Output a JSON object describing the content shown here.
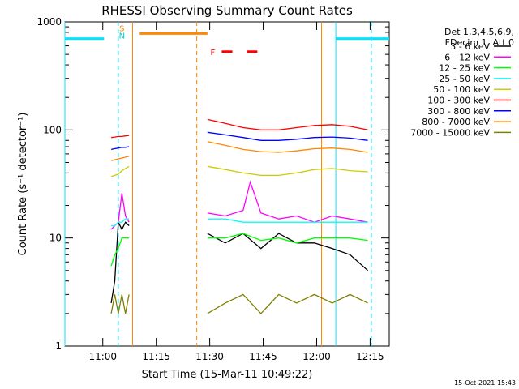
{
  "chart_data": {
    "type": "line",
    "title": "RHESSI Observing Summary Count Rates",
    "xlabel": "Start Time (15-Mar-11 10:49:22)",
    "ylabel": "Count Rate (s⁻¹ detector⁻¹)",
    "y_scale": "log",
    "ylim": [
      1,
      1000
    ],
    "xlim_minutes": [
      0,
      91
    ],
    "x_ticks": [
      "11:00",
      "11:15",
      "11:30",
      "11:45",
      "12:00",
      "12:15"
    ],
    "y_ticks": [
      "1",
      "10",
      "100",
      "1000"
    ],
    "footer": "15-Oct-2021 15:43",
    "legend": {
      "header": [
        "Det 1,3,4,5,6,9,",
        "FDecim 1, Att 0"
      ],
      "placement": "right"
    },
    "flag_labels": {
      "saa": "S",
      "night": "N",
      "flare": "F"
    },
    "series": [
      {
        "name": "3 - 6 keV",
        "color": "#000000",
        "segments": [
          {
            "x": [
              13,
              14,
              15,
              16,
              17,
              18
            ],
            "y": [
              2.5,
              4,
              14,
              12,
              14,
              13
            ]
          },
          {
            "x": [
              40,
              45,
              50,
              55,
              60,
              65,
              70,
              75,
              80,
              85
            ],
            "y": [
              11,
              9,
              11,
              8,
              11,
              9,
              9,
              8,
              7,
              5
            ]
          }
        ]
      },
      {
        "name": "6 - 12 keV",
        "color": "#ff00ff",
        "segments": [
          {
            "x": [
              13,
              14,
              15,
              16,
              17,
              18
            ],
            "y": [
              12,
              13,
              14,
              26,
              16,
              14
            ]
          },
          {
            "x": [
              40,
              45,
              50,
              52,
              55,
              60,
              65,
              70,
              75,
              80,
              85
            ],
            "y": [
              17,
              16,
              18,
              33,
              17,
              15,
              16,
              14,
              16,
              15,
              14
            ]
          }
        ]
      },
      {
        "name": "12 - 25 keV",
        "color": "#00ff00",
        "segments": [
          {
            "x": [
              13,
              14,
              15,
              16,
              17,
              18
            ],
            "y": [
              5.5,
              7,
              8,
              10,
              10,
              10
            ]
          },
          {
            "x": [
              40,
              45,
              50,
              55,
              60,
              65,
              70,
              75,
              80,
              85
            ],
            "y": [
              10,
              10,
              11,
              9.5,
              10,
              9,
              10,
              10,
              10,
              9.5
            ]
          }
        ]
      },
      {
        "name": "25 - 50 keV",
        "color": "#00ffff",
        "segments": [
          {
            "x": [
              13,
              14,
              15,
              16,
              17,
              18
            ],
            "y": [
              13,
              13,
              14,
              14,
              15,
              15
            ]
          },
          {
            "x": [
              40,
              45,
              50,
              55,
              60,
              65,
              70,
              75,
              80,
              85
            ],
            "y": [
              15,
              15,
              14,
              14,
              14,
              14,
              14,
              14,
              14,
              14
            ]
          }
        ]
      },
      {
        "name": "50 - 100 keV",
        "color": "#cccc00",
        "segments": [
          {
            "x": [
              13,
              14,
              15,
              16,
              17,
              18
            ],
            "y": [
              37,
              38,
              39,
              42,
              44,
              46
            ]
          },
          {
            "x": [
              40,
              45,
              50,
              55,
              60,
              65,
              70,
              75,
              80,
              85
            ],
            "y": [
              46,
              43,
              40,
              38,
              38,
              40,
              43,
              44,
              42,
              41
            ]
          }
        ]
      },
      {
        "name": "100 - 300 keV",
        "color": "#ff0000",
        "segments": [
          {
            "x": [
              13,
              14,
              15,
              16,
              17,
              18
            ],
            "y": [
              85,
              86,
              87,
              87,
              88,
              89
            ]
          },
          {
            "x": [
              40,
              45,
              50,
              55,
              60,
              65,
              70,
              75,
              80,
              85
            ],
            "y": [
              125,
              115,
              105,
              100,
              100,
              105,
              110,
              112,
              108,
              100
            ]
          }
        ]
      },
      {
        "name": "300 - 800 keV",
        "color": "#0000ff",
        "segments": [
          {
            "x": [
              13,
              14,
              15,
              16,
              17,
              18
            ],
            "y": [
              66,
              67,
              68,
              69,
              69,
              70
            ]
          },
          {
            "x": [
              40,
              45,
              50,
              55,
              60,
              65,
              70,
              75,
              80,
              85
            ],
            "y": [
              95,
              90,
              85,
              80,
              80,
              82,
              85,
              86,
              84,
              80
            ]
          }
        ]
      },
      {
        "name": "800 - 7000 keV",
        "color": "#ff8800",
        "segments": [
          {
            "x": [
              13,
              14,
              15,
              16,
              17,
              18
            ],
            "y": [
              52,
              53,
              54,
              55,
              56,
              57
            ]
          },
          {
            "x": [
              40,
              45,
              50,
              55,
              60,
              65,
              70,
              75,
              80,
              85
            ],
            "y": [
              78,
              72,
              66,
              63,
              62,
              64,
              67,
              68,
              66,
              62
            ]
          }
        ]
      },
      {
        "name": "7000 - 15000 keV",
        "color": "#808000",
        "segments": [
          {
            "x": [
              13,
              14,
              15,
              16,
              17,
              18
            ],
            "y": [
              2,
              3,
              2,
              3,
              2,
              3
            ]
          },
          {
            "x": [
              40,
              45,
              50,
              55,
              60,
              65,
              70,
              75,
              80,
              85
            ],
            "y": [
              2,
              2.5,
              3,
              2,
              3,
              2.5,
              3,
              2.5,
              3,
              2.5
            ]
          }
        ]
      }
    ],
    "flags": {
      "saa_bars": [
        {
          "start": 0,
          "end": 11,
          "level": 700
        },
        {
          "start": 76,
          "end": 91,
          "level": 700
        }
      ],
      "night_bar": {
        "start": 21,
        "end": 40,
        "level": 780
      },
      "flare_dashes": [
        {
          "start": 44,
          "end": 47,
          "level": 530
        },
        {
          "start": 51,
          "end": 54,
          "level": 530
        }
      ],
      "cyan_solid": [
        0,
        76
      ],
      "cyan_dashed": [
        15,
        86
      ],
      "orange_solid": [
        19,
        72
      ],
      "orange_dashed": [
        37
      ]
    }
  }
}
